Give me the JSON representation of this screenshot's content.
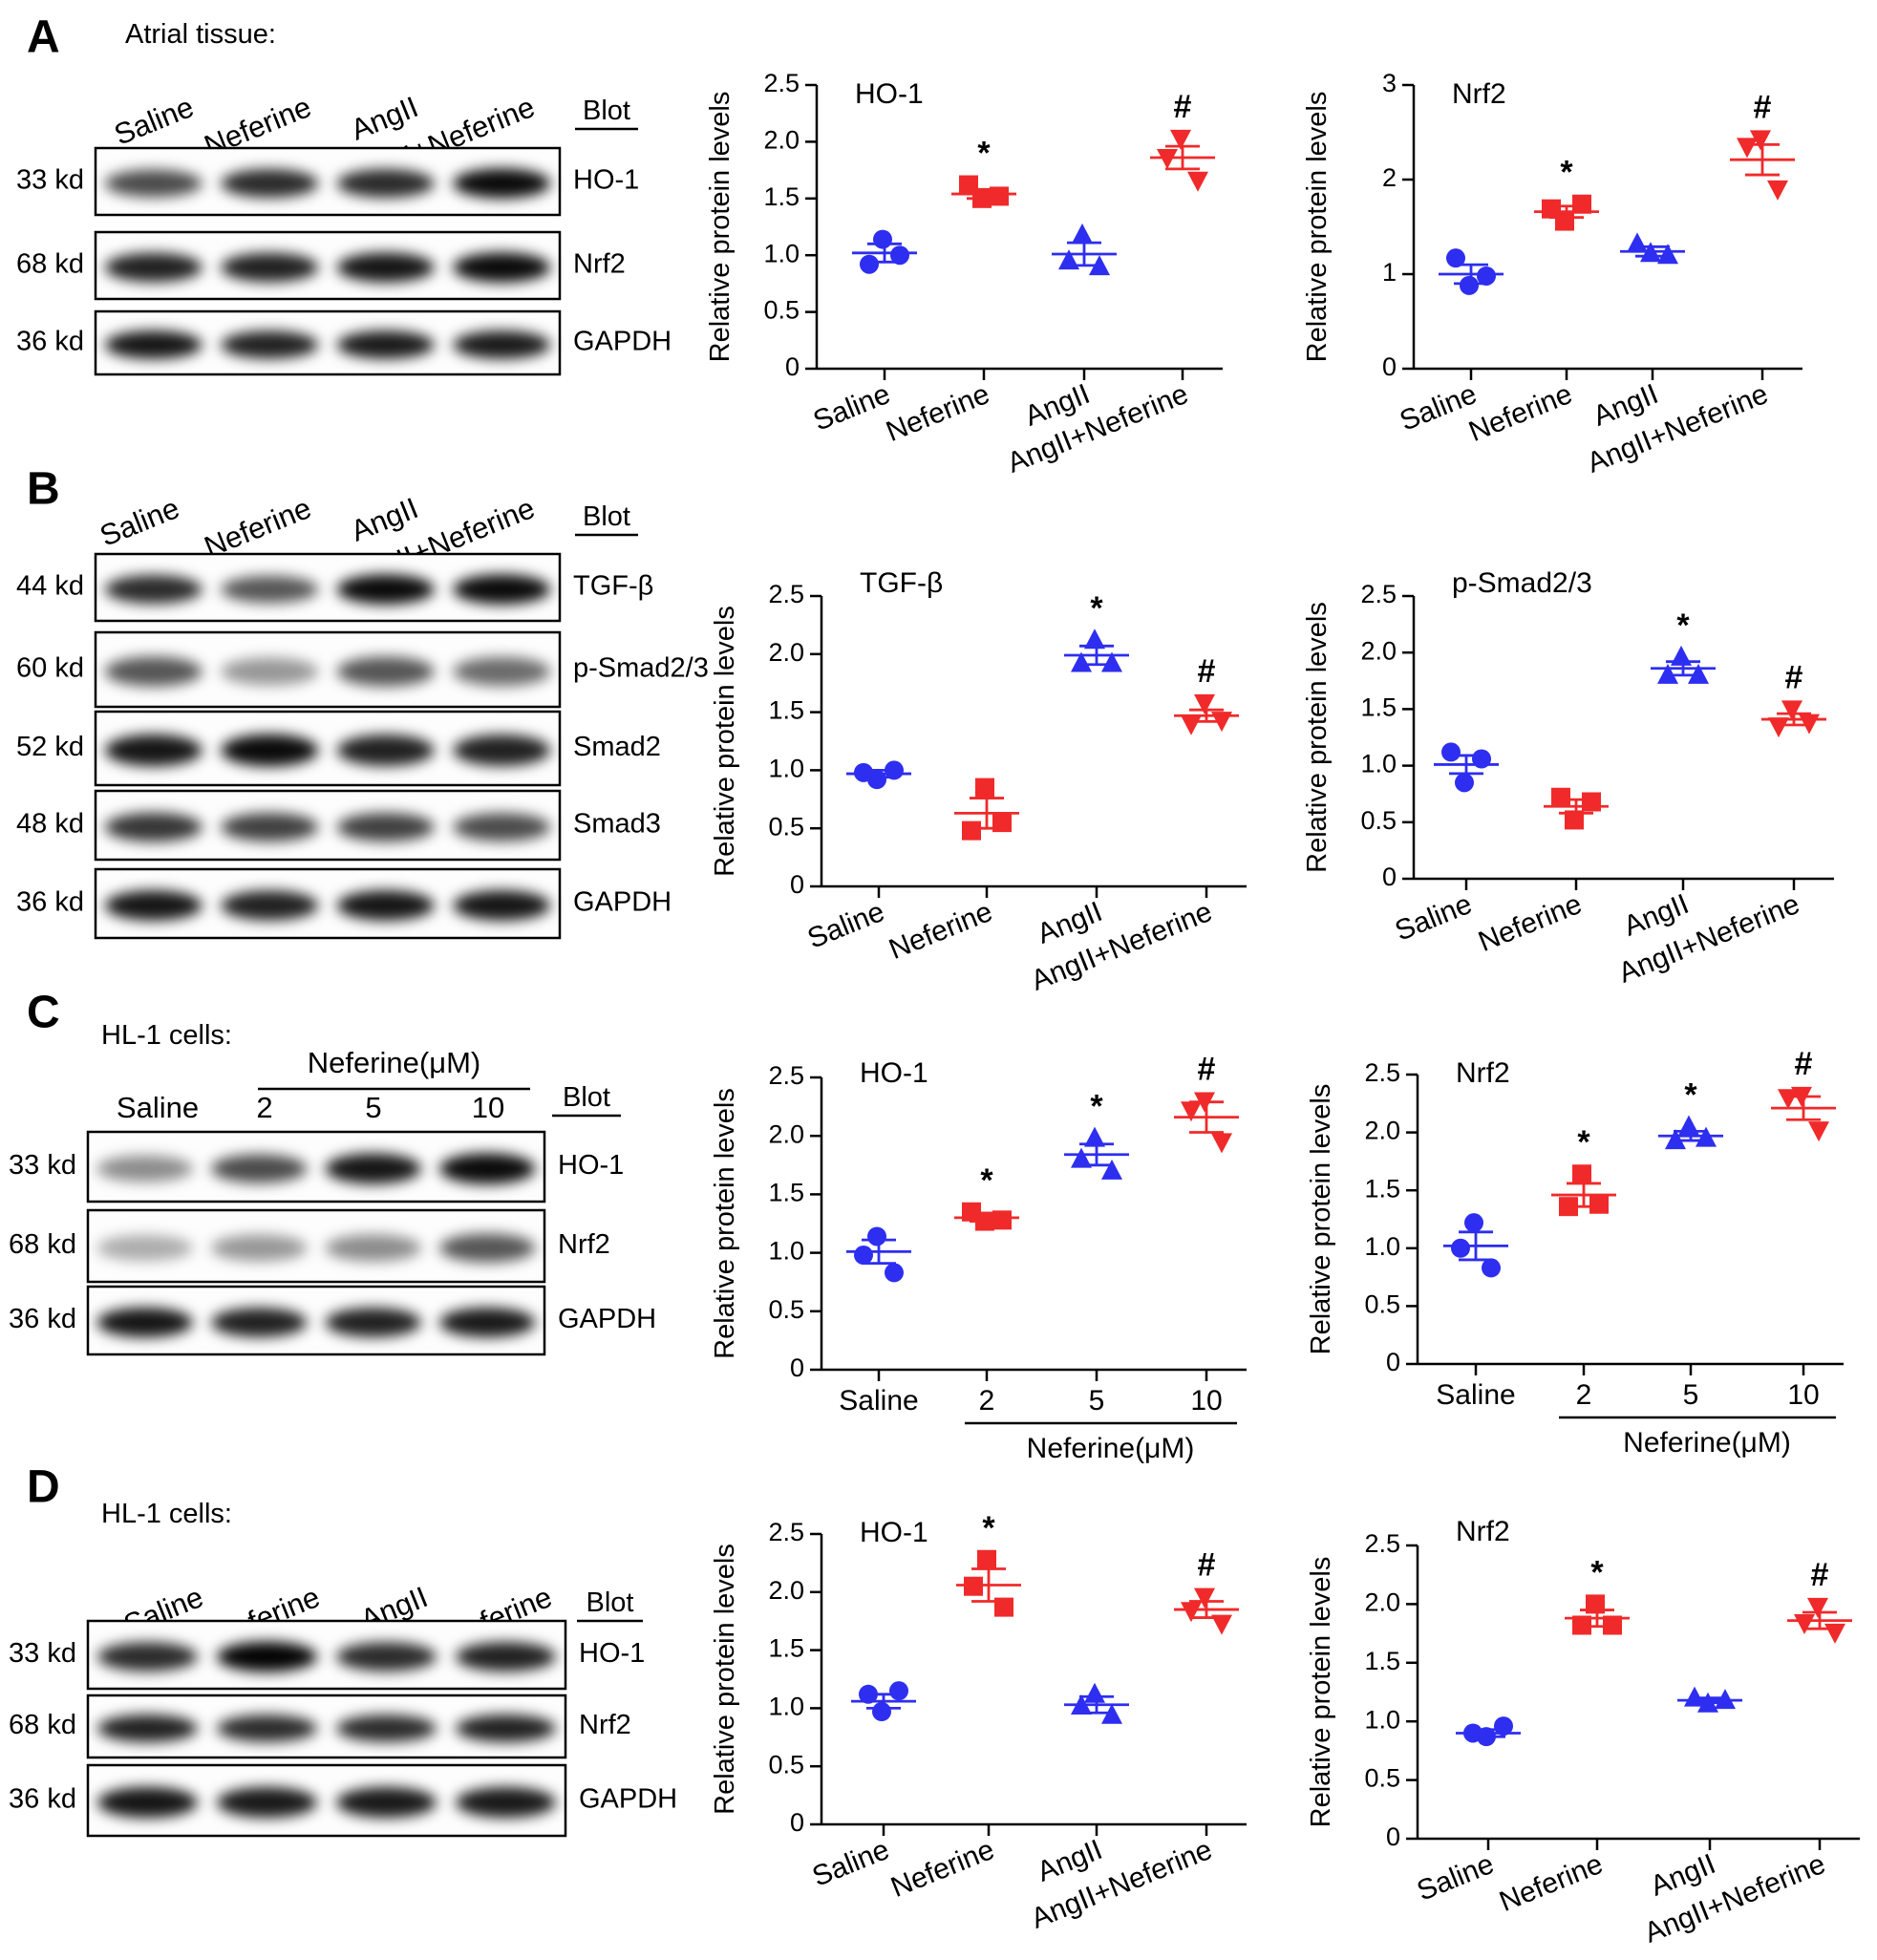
{
  "figure": {
    "labels": {
      "A": "A",
      "B": "B",
      "C": "C",
      "D": "D"
    },
    "blot_header": "Blot",
    "groups_standard": [
      "Saline",
      "Neferine",
      "AngII",
      "AngII+Neferine"
    ]
  },
  "colors": {
    "blue": "#2e2ef0",
    "red": "#f02a2a",
    "axis": "#000000"
  },
  "blots": [
    {
      "id": "A",
      "subtitle": "Atrial tissue:",
      "lanes": [
        "Saline",
        "Neferine",
        "AngII",
        "AngII+Neferine"
      ],
      "rows": [
        {
          "kd": "33 kd",
          "protein": "HO-1"
        },
        {
          "kd": "68 kd",
          "protein": "Nrf2"
        },
        {
          "kd": "36 kd",
          "protein": "GAPDH"
        }
      ]
    },
    {
      "id": "B",
      "subtitle": "",
      "lanes": [
        "Saline",
        "Neferine",
        "AngII",
        "AngII+Neferine"
      ],
      "rows": [
        {
          "kd": "44 kd",
          "protein": "TGF-β"
        },
        {
          "kd": "60 kd",
          "protein": "p-Smad2/3"
        },
        {
          "kd": "52 kd",
          "protein": "Smad2"
        },
        {
          "kd": "48 kd",
          "protein": "Smad3"
        },
        {
          "kd": "36 kd",
          "protein": "GAPDH"
        }
      ]
    },
    {
      "id": "C",
      "subtitle": "HL-1 cells:",
      "treatment": "Neferine(μM)",
      "lanes": [
        "Saline",
        "2",
        "5",
        "10"
      ],
      "rows": [
        {
          "kd": "33 kd",
          "protein": "HO-1"
        },
        {
          "kd": "68 kd",
          "protein": "Nrf2"
        },
        {
          "kd": "36 kd",
          "protein": "GAPDH"
        }
      ]
    },
    {
      "id": "D",
      "subtitle": "HL-1 cells:",
      "lanes": [
        "Saline",
        "Neferine",
        "AngII",
        "AngII+Neferine"
      ],
      "rows": [
        {
          "kd": "33 kd",
          "protein": "HO-1"
        },
        {
          "kd": "68 kd",
          "protein": "Nrf2"
        },
        {
          "kd": "36 kd",
          "protein": "GAPDH"
        }
      ]
    }
  ],
  "chart_data": [
    {
      "type": "scatter",
      "panel": "A",
      "title": "HO-1",
      "ylabel": "Relative protein levels",
      "ylim": [
        0,
        2.5
      ],
      "yticks": [
        "0",
        "0.5",
        "1.0",
        "1.5",
        "2.0",
        "2.5"
      ],
      "categories": [
        "Saline",
        "Neferine",
        "AngII",
        "AngII+Neferine"
      ],
      "series": [
        {
          "category": "Saline",
          "marker": "circle",
          "color": "blue",
          "mean": 1.02,
          "sem": 0.08,
          "points": [
            1.14,
            0.92,
            1.0
          ]
        },
        {
          "category": "Neferine",
          "marker": "square",
          "color": "red",
          "mean": 1.54,
          "sem": 0.04,
          "points": [
            1.5,
            1.62,
            1.52
          ],
          "sig": "*"
        },
        {
          "category": "AngII",
          "marker": "triangle",
          "color": "blue",
          "mean": 1.01,
          "sem": 0.1,
          "points": [
            1.18,
            0.95,
            0.9
          ]
        },
        {
          "category": "AngII+Neferine",
          "marker": "triangle-down",
          "color": "red",
          "mean": 1.86,
          "sem": 0.1,
          "points": [
            2.03,
            1.86,
            1.66
          ],
          "sig": "#"
        }
      ]
    },
    {
      "type": "scatter",
      "panel": "A",
      "title": "Nrf2",
      "ylabel": "Relative protein levels",
      "ylim": [
        0,
        3
      ],
      "yticks": [
        "0",
        "1",
        "2",
        "3"
      ],
      "categories": [
        "Saline",
        "Neferine",
        "AngII",
        "AngII+Neferine"
      ],
      "series": [
        {
          "category": "Saline",
          "marker": "circle",
          "color": "blue",
          "mean": 1.0,
          "sem": 0.1,
          "points": [
            0.88,
            1.17,
            0.98
          ]
        },
        {
          "category": "Neferine",
          "marker": "square",
          "color": "red",
          "mean": 1.66,
          "sem": 0.06,
          "points": [
            1.56,
            1.69,
            1.74
          ],
          "sig": "*"
        },
        {
          "category": "AngII",
          "marker": "triangle",
          "color": "blue",
          "mean": 1.24,
          "sem": 0.05,
          "points": [
            1.22,
            1.32,
            1.2
          ]
        },
        {
          "category": "AngII+Neferine",
          "marker": "triangle-down",
          "color": "red",
          "mean": 2.21,
          "sem": 0.16,
          "points": [
            2.43,
            2.35,
            1.9
          ],
          "sig": "#"
        }
      ]
    },
    {
      "type": "scatter",
      "panel": "B",
      "title": "TGF-β",
      "ylabel": "Relative protein levels",
      "ylim": [
        0,
        2.5
      ],
      "yticks": [
        "0",
        "0.5",
        "1.0",
        "1.5",
        "2.0",
        "2.5"
      ],
      "categories": [
        "Saline",
        "Neferine",
        "AngII",
        "AngII+Neferine"
      ],
      "series": [
        {
          "category": "Saline",
          "marker": "circle",
          "color": "blue",
          "mean": 0.97,
          "sem": 0.03,
          "points": [
            0.92,
            0.98,
            1.0
          ]
        },
        {
          "category": "Neferine",
          "marker": "square",
          "color": "red",
          "mean": 0.63,
          "sem": 0.13,
          "points": [
            0.85,
            0.48,
            0.55
          ]
        },
        {
          "category": "AngII",
          "marker": "triangle",
          "color": "blue",
          "mean": 1.99,
          "sem": 0.08,
          "points": [
            2.12,
            1.92,
            1.92
          ],
          "sig": "*"
        },
        {
          "category": "AngII+Neferine",
          "marker": "triangle-down",
          "color": "red",
          "mean": 1.47,
          "sem": 0.05,
          "points": [
            1.58,
            1.4,
            1.43
          ],
          "sig": "#"
        }
      ]
    },
    {
      "type": "scatter",
      "panel": "B",
      "title": "p-Smad2/3",
      "ylabel": "Relative protein levels",
      "ylim": [
        0,
        2.5
      ],
      "yticks": [
        "0",
        "0.5",
        "1.0",
        "1.5",
        "2.0",
        "2.5"
      ],
      "categories": [
        "Saline",
        "Neferine",
        "AngII",
        "AngII+Neferine"
      ],
      "series": [
        {
          "category": "Saline",
          "marker": "circle",
          "color": "blue",
          "mean": 1.01,
          "sem": 0.08,
          "points": [
            0.85,
            1.12,
            1.06
          ]
        },
        {
          "category": "Neferine",
          "marker": "square",
          "color": "red",
          "mean": 0.64,
          "sem": 0.06,
          "points": [
            0.52,
            0.72,
            0.68
          ]
        },
        {
          "category": "AngII",
          "marker": "triangle",
          "color": "blue",
          "mean": 1.86,
          "sem": 0.06,
          "points": [
            1.96,
            1.8,
            1.8
          ],
          "sig": "*"
        },
        {
          "category": "AngII+Neferine",
          "marker": "triangle-down",
          "color": "red",
          "mean": 1.41,
          "sem": 0.05,
          "points": [
            1.5,
            1.35,
            1.38
          ],
          "sig": "#"
        }
      ]
    },
    {
      "type": "scatter",
      "panel": "C",
      "title": "HO-1",
      "ylabel": "Relative protein levels",
      "ylim": [
        0,
        2.5
      ],
      "yticks": [
        "0",
        "0.5",
        "1.0",
        "1.5",
        "2.0",
        "2.5"
      ],
      "categories": [
        "Saline",
        "2",
        "5",
        "10"
      ],
      "xgroup": "Neferine(μM)",
      "series": [
        {
          "category": "Saline",
          "marker": "circle",
          "color": "blue",
          "mean": 1.01,
          "sem": 0.1,
          "points": [
            1.14,
            0.98,
            0.83
          ]
        },
        {
          "category": "2",
          "marker": "square",
          "color": "red",
          "mean": 1.3,
          "sem": 0.03,
          "points": [
            1.27,
            1.35,
            1.28
          ],
          "sig": "*"
        },
        {
          "category": "5",
          "marker": "triangle",
          "color": "blue",
          "mean": 1.84,
          "sem": 0.09,
          "points": [
            1.98,
            1.8,
            1.7
          ],
          "sig": "*"
        },
        {
          "category": "10",
          "marker": "triangle-down",
          "color": "red",
          "mean": 2.16,
          "sem": 0.13,
          "points": [
            2.3,
            2.22,
            1.95
          ],
          "sig": "#"
        }
      ]
    },
    {
      "type": "scatter",
      "panel": "C",
      "title": "Nrf2",
      "ylabel": "Relative protein levels",
      "ylim": [
        0,
        2.5
      ],
      "yticks": [
        "0",
        "0.5",
        "1.0",
        "1.5",
        "2.0",
        "2.5"
      ],
      "categories": [
        "Saline",
        "2",
        "5",
        "10"
      ],
      "xgroup": "Neferine(μM)",
      "series": [
        {
          "category": "Saline",
          "marker": "circle",
          "color": "blue",
          "mean": 1.02,
          "sem": 0.12,
          "points": [
            1.22,
            1.0,
            0.83
          ]
        },
        {
          "category": "2",
          "marker": "square",
          "color": "red",
          "mean": 1.46,
          "sem": 0.1,
          "points": [
            1.64,
            1.36,
            1.38
          ],
          "sig": "*"
        },
        {
          "category": "5",
          "marker": "triangle",
          "color": "blue",
          "mean": 1.97,
          "sem": 0.04,
          "points": [
            2.05,
            1.93,
            1.95
          ],
          "sig": "*"
        },
        {
          "category": "10",
          "marker": "triangle-down",
          "color": "red",
          "mean": 2.21,
          "sem": 0.1,
          "points": [
            2.32,
            2.3,
            2.02
          ],
          "sig": "#"
        }
      ]
    },
    {
      "type": "scatter",
      "panel": "D",
      "title": "HO-1",
      "ylabel": "Relative protein levels",
      "ylim": [
        0,
        2.5
      ],
      "yticks": [
        "0",
        "0.5",
        "1.0",
        "1.5",
        "2.0",
        "2.5"
      ],
      "categories": [
        "Saline",
        "Neferine",
        "AngII",
        "AngII+Neferine"
      ],
      "series": [
        {
          "category": "Saline",
          "marker": "circle",
          "color": "blue",
          "mean": 1.06,
          "sem": 0.06,
          "points": [
            0.97,
            1.12,
            1.15
          ]
        },
        {
          "category": "Neferine",
          "marker": "square",
          "color": "red",
          "mean": 2.06,
          "sem": 0.14,
          "points": [
            2.28,
            2.05,
            1.87
          ],
          "sig": "*"
        },
        {
          "category": "AngII",
          "marker": "triangle",
          "color": "blue",
          "mean": 1.03,
          "sem": 0.07,
          "points": [
            1.12,
            1.02,
            0.94
          ]
        },
        {
          "category": "AngII+Neferine",
          "marker": "triangle-down",
          "color": "red",
          "mean": 1.85,
          "sem": 0.07,
          "points": [
            1.96,
            1.84,
            1.73
          ],
          "sig": "#"
        }
      ]
    },
    {
      "type": "scatter",
      "panel": "D",
      "title": "Nrf2",
      "ylabel": "Relative protein levels",
      "ylim": [
        0,
        2.5
      ],
      "yticks": [
        "0",
        "0.5",
        "1.0",
        "1.5",
        "2.0",
        "2.5"
      ],
      "categories": [
        "Saline",
        "Neferine",
        "AngII",
        "AngII+Neferine"
      ],
      "series": [
        {
          "category": "Saline",
          "marker": "circle",
          "color": "blue",
          "mean": 0.9,
          "sem": 0.03,
          "points": [
            0.87,
            0.9,
            0.96
          ]
        },
        {
          "category": "Neferine",
          "marker": "square",
          "color": "red",
          "mean": 1.88,
          "sem": 0.07,
          "points": [
            2.0,
            1.82,
            1.82
          ],
          "sig": "*"
        },
        {
          "category": "AngII",
          "marker": "triangle",
          "color": "blue",
          "mean": 1.18,
          "sem": 0.02,
          "points": [
            1.15,
            1.2,
            1.18
          ]
        },
        {
          "category": "AngII+Neferine",
          "marker": "triangle-down",
          "color": "red",
          "mean": 1.86,
          "sem": 0.07,
          "points": [
            1.98,
            1.84,
            1.76
          ],
          "sig": "#"
        }
      ]
    }
  ]
}
